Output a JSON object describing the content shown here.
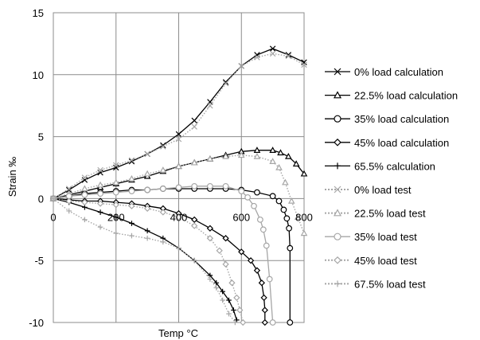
{
  "chart_data": {
    "type": "line",
    "title": "",
    "xlabel": "Temp °C",
    "ylabel": "Strain ‰",
    "xlim": [
      0,
      800
    ],
    "ylim": [
      -10,
      15
    ],
    "xticks": [
      0,
      200,
      400,
      600,
      800
    ],
    "xtick_labels": [
      "0",
      "200",
      "400",
      "600",
      "800"
    ],
    "yticks": [
      -10,
      -5,
      0,
      5,
      10,
      15
    ],
    "ytick_labels": [
      "-10",
      "-5",
      "0",
      "5",
      "10",
      "15"
    ],
    "grid": true,
    "legend_position": "right",
    "series": [
      {
        "name": "0% load calculation",
        "marker": "x",
        "color": "#000000",
        "line": "solid",
        "x": [
          0,
          50,
          100,
          150,
          200,
          250,
          300,
          350,
          400,
          450,
          500,
          550,
          600,
          650,
          700,
          750,
          800
        ],
        "y": [
          0,
          0.7,
          1.5,
          2.1,
          2.5,
          3.0,
          3.6,
          4.3,
          5.2,
          6.3,
          7.8,
          9.4,
          10.7,
          11.6,
          12.1,
          11.6,
          11.0
        ]
      },
      {
        "name": "22.5% load calculation",
        "marker": "triangle",
        "color": "#000000",
        "line": "solid",
        "x": [
          0,
          50,
          100,
          150,
          200,
          250,
          300,
          350,
          400,
          450,
          500,
          550,
          600,
          650,
          700,
          725,
          750,
          775,
          800
        ],
        "y": [
          0,
          0.3,
          0.6,
          0.9,
          1.2,
          1.5,
          1.8,
          2.2,
          2.6,
          2.9,
          3.2,
          3.5,
          3.8,
          3.9,
          3.9,
          3.7,
          3.4,
          2.8,
          2.0
        ]
      },
      {
        "name": "35% load calculation",
        "marker": "circle",
        "color": "#000000",
        "line": "solid",
        "x": [
          0,
          50,
          100,
          150,
          200,
          250,
          300,
          350,
          400,
          450,
          500,
          550,
          600,
          650,
          700,
          720,
          735,
          745,
          752,
          755,
          755
        ],
        "y": [
          0,
          0.2,
          0.4,
          0.5,
          0.6,
          0.7,
          0.7,
          0.8,
          0.8,
          0.8,
          0.8,
          0.8,
          0.7,
          0.5,
          0.2,
          -0.2,
          -0.9,
          -1.6,
          -2.4,
          -4.0,
          -10.0
        ]
      },
      {
        "name": "45% load calculation",
        "marker": "diamond",
        "color": "#000000",
        "line": "solid",
        "x": [
          0,
          50,
          100,
          150,
          200,
          250,
          300,
          350,
          400,
          450,
          500,
          550,
          600,
          630,
          650,
          665,
          672,
          675,
          675
        ],
        "y": [
          0,
          -0.1,
          -0.2,
          -0.2,
          -0.3,
          -0.4,
          -0.6,
          -0.8,
          -1.2,
          -1.7,
          -2.4,
          -3.2,
          -4.3,
          -5.0,
          -5.8,
          -6.8,
          -8.0,
          -9.0,
          -10.0
        ]
      },
      {
        "name": "65.5% calculation",
        "marker": "plus",
        "color": "#000000",
        "line": "solid",
        "x": [
          0,
          50,
          100,
          150,
          200,
          250,
          300,
          350,
          400,
          450,
          500,
          520,
          540,
          560,
          575,
          585
        ],
        "y": [
          0,
          -0.3,
          -0.7,
          -1.1,
          -1.5,
          -2.0,
          -2.6,
          -3.2,
          -4.0,
          -5.0,
          -6.2,
          -6.8,
          -7.5,
          -8.2,
          -9.0,
          -9.8
        ]
      },
      {
        "name": "0% load test",
        "marker": "x",
        "color": "#a6a6a6",
        "line": "dotted",
        "x": [
          0,
          50,
          100,
          150,
          200,
          250,
          300,
          350,
          400,
          450,
          500,
          550,
          600,
          650,
          700,
          750,
          800
        ],
        "y": [
          0,
          0.8,
          1.7,
          2.3,
          2.7,
          3.1,
          3.6,
          4.2,
          4.8,
          5.8,
          7.5,
          9.3,
          10.7,
          11.4,
          11.7,
          11.5,
          10.8
        ]
      },
      {
        "name": "22.5% load test",
        "marker": "triangle",
        "color": "#a6a6a6",
        "line": "dotted",
        "x": [
          0,
          50,
          100,
          150,
          200,
          250,
          300,
          350,
          400,
          450,
          500,
          550,
          600,
          650,
          700,
          720,
          740,
          760,
          780,
          800
        ],
        "y": [
          0,
          0.4,
          0.8,
          1.1,
          1.3,
          1.6,
          2.0,
          2.3,
          2.6,
          2.9,
          3.2,
          3.4,
          3.5,
          3.4,
          3.0,
          2.5,
          1.3,
          -0.2,
          -1.5,
          -2.8
        ]
      },
      {
        "name": "35% load test",
        "marker": "circle",
        "color": "#a6a6a6",
        "line": "solid",
        "x": [
          0,
          50,
          100,
          150,
          200,
          250,
          300,
          350,
          400,
          450,
          500,
          550,
          600,
          620,
          640,
          660,
          670,
          680,
          690,
          700
        ],
        "y": [
          0,
          0.2,
          0.3,
          0.4,
          0.5,
          0.6,
          0.7,
          0.8,
          0.9,
          1.0,
          1.0,
          1.0,
          0.6,
          0.1,
          -0.6,
          -1.7,
          -2.5,
          -3.8,
          -6.5,
          -10.0
        ]
      },
      {
        "name": "45% load test",
        "marker": "diamond",
        "color": "#a6a6a6",
        "line": "dotted",
        "x": [
          0,
          50,
          100,
          150,
          200,
          250,
          300,
          350,
          400,
          450,
          500,
          530,
          550,
          570,
          585,
          595,
          605
        ],
        "y": [
          0,
          -0.2,
          -0.3,
          -0.4,
          -0.5,
          -0.6,
          -0.8,
          -1.1,
          -1.5,
          -2.2,
          -3.2,
          -4.2,
          -5.3,
          -6.8,
          -8.0,
          -9.0,
          -10.0
        ]
      },
      {
        "name": "67.5% load test",
        "marker": "plus",
        "color": "#a6a6a6",
        "line": "dotted",
        "x": [
          0,
          50,
          100,
          150,
          200,
          250,
          300,
          350,
          400,
          450,
          500,
          520,
          540,
          560,
          580
        ],
        "y": [
          0,
          -1.0,
          -1.7,
          -2.3,
          -2.8,
          -3.0,
          -3.2,
          -3.5,
          -4.0,
          -5.0,
          -6.5,
          -7.2,
          -8.2,
          -9.3,
          -10.0
        ]
      }
    ]
  }
}
